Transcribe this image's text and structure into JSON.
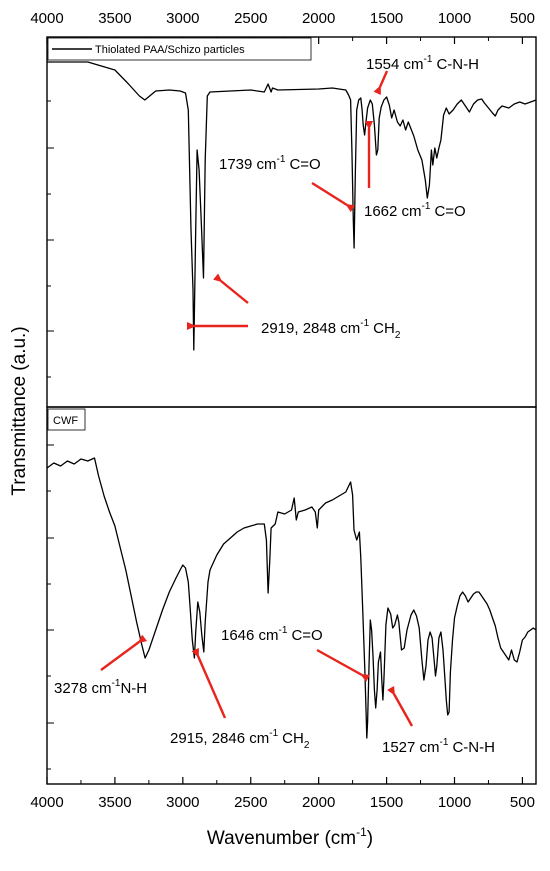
{
  "chart_data": {
    "type": "line",
    "xlabel": "Wavenumber (cm-1)",
    "xlabel_parts": {
      "main": "Wavenumber (cm",
      "sup": "-1",
      "close": ")"
    },
    "ylabel": "Transmittance (a.u.)",
    "xlim": [
      4000,
      400
    ],
    "x_ticks": [
      4000,
      3500,
      3000,
      2500,
      2000,
      1500,
      1000,
      500
    ],
    "x_reversed": true,
    "panels": [
      {
        "legend": "Thiolated PAA/Schizo particles",
        "legend_style": "line",
        "series_points": [
          [
            4000,
            62
          ],
          [
            3700,
            62
          ],
          [
            3500,
            70
          ],
          [
            3400,
            84
          ],
          [
            3320,
            96
          ],
          [
            3280,
            100
          ],
          [
            3200,
            91
          ],
          [
            3100,
            90
          ],
          [
            3020,
            91
          ],
          [
            2980,
            93
          ],
          [
            2960,
            110
          ],
          [
            2940,
            230
          ],
          [
            2925,
            290
          ],
          [
            2919,
            350
          ],
          [
            2905,
            230
          ],
          [
            2895,
            150
          ],
          [
            2880,
            170
          ],
          [
            2862,
            230
          ],
          [
            2848,
            278
          ],
          [
            2835,
            160
          ],
          [
            2820,
            96
          ],
          [
            2800,
            92
          ],
          [
            2500,
            90
          ],
          [
            2400,
            92
          ],
          [
            2372,
            84
          ],
          [
            2350,
            92
          ],
          [
            2340,
            88
          ],
          [
            2300,
            90
          ],
          [
            2000,
            89
          ],
          [
            1900,
            88
          ],
          [
            1800,
            90
          ],
          [
            1780,
            95
          ],
          [
            1765,
            100
          ],
          [
            1755,
            150
          ],
          [
            1745,
            220
          ],
          [
            1739,
            248
          ],
          [
            1730,
            175
          ],
          [
            1720,
            110
          ],
          [
            1705,
            100
          ],
          [
            1690,
            98
          ],
          [
            1680,
            110
          ],
          [
            1672,
            125
          ],
          [
            1662,
            135
          ],
          [
            1650,
            120
          ],
          [
            1640,
            108
          ],
          [
            1620,
            100
          ],
          [
            1605,
            104
          ],
          [
            1590,
            125
          ],
          [
            1575,
            155
          ],
          [
            1565,
            150
          ],
          [
            1554,
            118
          ],
          [
            1540,
            107
          ],
          [
            1520,
            100
          ],
          [
            1500,
            97
          ],
          [
            1480,
            105
          ],
          [
            1462,
            118
          ],
          [
            1445,
            110
          ],
          [
            1420,
            122
          ],
          [
            1400,
            126
          ],
          [
            1380,
            120
          ],
          [
            1360,
            130
          ],
          [
            1340,
            122
          ],
          [
            1300,
            136
          ],
          [
            1270,
            150
          ],
          [
            1240,
            160
          ],
          [
            1215,
            180
          ],
          [
            1200,
            198
          ],
          [
            1185,
            185
          ],
          [
            1170,
            150
          ],
          [
            1160,
            165
          ],
          [
            1145,
            148
          ],
          [
            1130,
            158
          ],
          [
            1115,
            148
          ],
          [
            1100,
            140
          ],
          [
            1080,
            115
          ],
          [
            1060,
            108
          ],
          [
            1040,
            114
          ],
          [
            1010,
            110
          ],
          [
            980,
            104
          ],
          [
            950,
            100
          ],
          [
            920,
            106
          ],
          [
            890,
            112
          ],
          [
            860,
            104
          ],
          [
            830,
            100
          ],
          [
            800,
            99
          ],
          [
            780,
            103
          ],
          [
            750,
            108
          ],
          [
            720,
            113
          ],
          [
            700,
            116
          ],
          [
            680,
            110
          ],
          [
            650,
            106
          ],
          [
            600,
            108
          ],
          [
            560,
            104
          ],
          [
            520,
            102
          ],
          [
            480,
            104
          ],
          [
            440,
            102
          ],
          [
            400,
            100
          ]
        ],
        "annotations": [
          {
            "number": "1554 cm",
            "sup": "-1",
            "group": "C-N-H"
          },
          {
            "number": "1739 cm",
            "sup": "-1",
            "group": "C=O"
          },
          {
            "number": "1662 cm",
            "sup": "-1",
            "group": "C=O"
          },
          {
            "number": "2919, 2848 cm",
            "sup": "-1",
            "group": "CH",
            "group_sub": "2"
          }
        ]
      },
      {
        "legend": "CWF",
        "legend_style": "box",
        "series_points": [
          [
            4000,
            468
          ],
          [
            3950,
            463
          ],
          [
            3900,
            466
          ],
          [
            3850,
            461
          ],
          [
            3800,
            464
          ],
          [
            3750,
            459
          ],
          [
            3700,
            461
          ],
          [
            3650,
            458
          ],
          [
            3620,
            476
          ],
          [
            3580,
            496
          ],
          [
            3540,
            512
          ],
          [
            3500,
            526
          ],
          [
            3460,
            548
          ],
          [
            3420,
            570
          ],
          [
            3380,
            596
          ],
          [
            3340,
            622
          ],
          [
            3300,
            646
          ],
          [
            3278,
            658
          ],
          [
            3250,
            650
          ],
          [
            3200,
            630
          ],
          [
            3150,
            610
          ],
          [
            3100,
            592
          ],
          [
            3050,
            578
          ],
          [
            3020,
            570
          ],
          [
            3000,
            565
          ],
          [
            2980,
            568
          ],
          [
            2960,
            582
          ],
          [
            2945,
            610
          ],
          [
            2930,
            640
          ],
          [
            2915,
            658
          ],
          [
            2905,
            632
          ],
          [
            2890,
            602
          ],
          [
            2875,
            612
          ],
          [
            2860,
            635
          ],
          [
            2846,
            652
          ],
          [
            2835,
            622
          ],
          [
            2815,
            582
          ],
          [
            2800,
            570
          ],
          [
            2750,
            555
          ],
          [
            2700,
            544
          ],
          [
            2650,
            538
          ],
          [
            2600,
            532
          ],
          [
            2550,
            528
          ],
          [
            2500,
            526
          ],
          [
            2450,
            524
          ],
          [
            2400,
            524
          ],
          [
            2385,
            540
          ],
          [
            2372,
            593
          ],
          [
            2360,
            560
          ],
          [
            2350,
            528
          ],
          [
            2320,
            524
          ],
          [
            2300,
            512
          ],
          [
            2250,
            514
          ],
          [
            2200,
            510
          ],
          [
            2180,
            498
          ],
          [
            2165,
            520
          ],
          [
            2150,
            512
          ],
          [
            2100,
            510
          ],
          [
            2050,
            507
          ],
          [
            2025,
            512
          ],
          [
            2010,
            528
          ],
          [
            2000,
            510
          ],
          [
            1950,
            503
          ],
          [
            1900,
            500
          ],
          [
            1850,
            496
          ],
          [
            1800,
            492
          ],
          [
            1765,
            482
          ],
          [
            1750,
            495
          ],
          [
            1740,
            530
          ],
          [
            1720,
            540
          ],
          [
            1700,
            532
          ],
          [
            1690,
            558
          ],
          [
            1675,
            612
          ],
          [
            1660,
            672
          ],
          [
            1650,
            716
          ],
          [
            1646,
            738
          ],
          [
            1640,
            722
          ],
          [
            1630,
            670
          ],
          [
            1620,
            620
          ],
          [
            1610,
            630
          ],
          [
            1600,
            656
          ],
          [
            1590,
            690
          ],
          [
            1580,
            708
          ],
          [
            1570,
            690
          ],
          [
            1560,
            662
          ],
          [
            1545,
            652
          ],
          [
            1535,
            680
          ],
          [
            1527,
            700
          ],
          [
            1520,
            680
          ],
          [
            1505,
            625
          ],
          [
            1490,
            608
          ],
          [
            1470,
            614
          ],
          [
            1455,
            628
          ],
          [
            1440,
            625
          ],
          [
            1420,
            615
          ],
          [
            1410,
            622
          ],
          [
            1390,
            650
          ],
          [
            1370,
            648
          ],
          [
            1350,
            630
          ],
          [
            1320,
            615
          ],
          [
            1300,
            610
          ],
          [
            1280,
            616
          ],
          [
            1260,
            628
          ],
          [
            1240,
            660
          ],
          [
            1225,
            680
          ],
          [
            1210,
            666
          ],
          [
            1195,
            640
          ],
          [
            1180,
            632
          ],
          [
            1165,
            638
          ],
          [
            1150,
            660
          ],
          [
            1140,
            676
          ],
          [
            1130,
            666
          ],
          [
            1115,
            638
          ],
          [
            1100,
            632
          ],
          [
            1085,
            650
          ],
          [
            1070,
            680
          ],
          [
            1060,
            700
          ],
          [
            1050,
            715
          ],
          [
            1040,
            712
          ],
          [
            1030,
            672
          ],
          [
            1015,
            640
          ],
          [
            1000,
            618
          ],
          [
            980,
            606
          ],
          [
            960,
            596
          ],
          [
            940,
            592
          ],
          [
            920,
            596
          ],
          [
            900,
            602
          ],
          [
            880,
            598
          ],
          [
            860,
            594
          ],
          [
            840,
            592
          ],
          [
            820,
            592
          ],
          [
            800,
            596
          ],
          [
            780,
            600
          ],
          [
            760,
            604
          ],
          [
            740,
            610
          ],
          [
            720,
            618
          ],
          [
            700,
            626
          ],
          [
            680,
            638
          ],
          [
            660,
            648
          ],
          [
            640,
            652
          ],
          [
            620,
            656
          ],
          [
            600,
            660
          ],
          [
            580,
            650
          ],
          [
            560,
            660
          ],
          [
            540,
            662
          ],
          [
            520,
            652
          ],
          [
            500,
            640
          ],
          [
            480,
            637
          ],
          [
            460,
            632
          ],
          [
            440,
            630
          ],
          [
            420,
            628
          ],
          [
            400,
            630
          ]
        ],
        "annotations": [
          {
            "number": "3278 cm",
            "sup": "-1",
            "group": "N-H"
          },
          {
            "number": "2915, 2846 cm",
            "sup": "-1",
            "group": "CH",
            "group_sub": "2"
          },
          {
            "number": "1646 cm",
            "sup": "-1",
            "group": "C=O"
          },
          {
            "number": "1527 cm",
            "sup": "-1",
            "group": "C-N-H"
          }
        ]
      }
    ]
  },
  "colors": {
    "line": "#000000",
    "arrow": "#e8241c",
    "axis": "#000000"
  }
}
